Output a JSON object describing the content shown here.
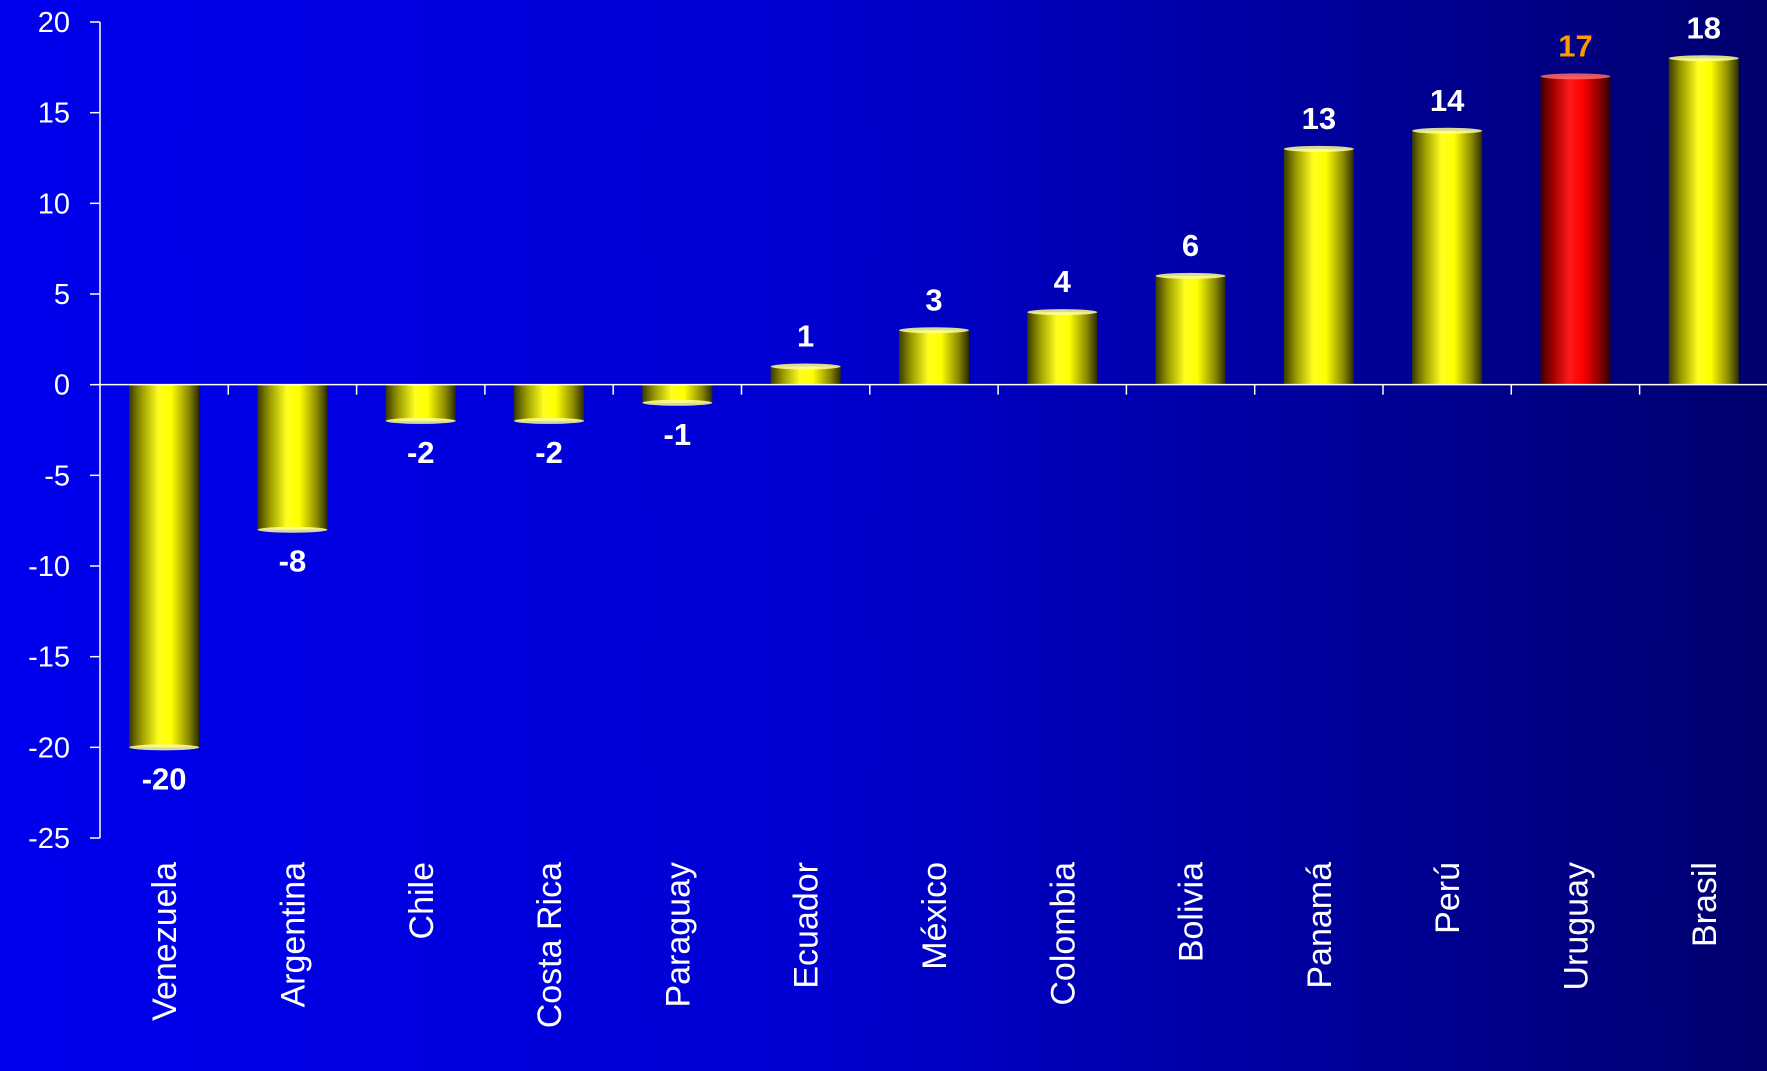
{
  "chart_data": {
    "type": "bar",
    "categories": [
      "Venezuela",
      "Argentina",
      "Chile",
      "Costa Rica",
      "Paraguay",
      "Ecuador",
      "México",
      "Colombia",
      "Bolivia",
      "Panamá",
      "Perú",
      "Uruguay",
      "Brasil"
    ],
    "values": [
      -20,
      -8,
      -2,
      -2,
      -1,
      1,
      3,
      4,
      6,
      13,
      14,
      17,
      18
    ],
    "data_labels": [
      "-20",
      "-8",
      "-2",
      "-2",
      "-1",
      "1",
      "3",
      "4",
      "6",
      "13",
      "14",
      "17",
      "18"
    ],
    "ylim": [
      -25,
      20
    ],
    "yticks": [
      20,
      15,
      10,
      5,
      0,
      -5,
      -10,
      -15,
      -20,
      -25
    ],
    "ytick_labels": [
      "20",
      "15",
      "10",
      "5",
      "0",
      "-5",
      "-10",
      "-15",
      "-20",
      "-25"
    ],
    "grid": false,
    "title": "",
    "xlabel": "",
    "ylabel": "",
    "highlight_category": "Uruguay",
    "colors": {
      "bar": "#ffff00",
      "highlight_bar": "#ff0000",
      "label": "#ffffff",
      "highlight_label": "#ff9900",
      "axis": "#ffffff",
      "background_start": "#0000ee",
      "background_end": "#00006e"
    }
  }
}
